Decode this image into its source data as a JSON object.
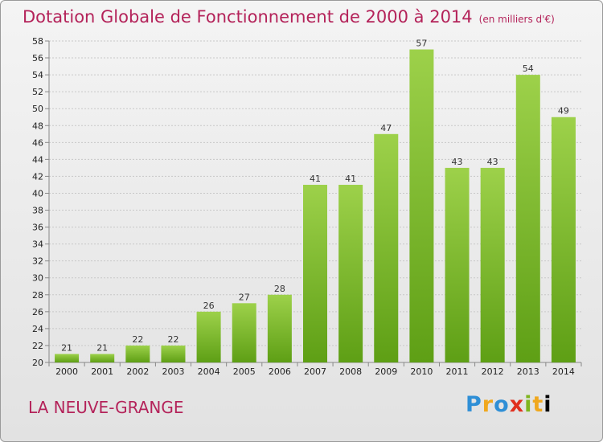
{
  "header": {
    "title": "Dotation Globale de Fonctionnement de 2000 à 2014",
    "unit": "(en milliers d'€)"
  },
  "footer": {
    "commune": "LA NEUVE-GRANGE",
    "logo": "Proxiti"
  },
  "colors": {
    "title": "#b4235a",
    "bar_light": "#9dd14a",
    "bar_dark": "#5e9f15",
    "grid": "#c8c8c8"
  },
  "chart_data": {
    "type": "bar",
    "title": "Dotation Globale de Fonctionnement de 2000 à 2014",
    "subtitle": "(en milliers d'€)",
    "xlabel": "",
    "ylabel": "",
    "categories": [
      "2000",
      "2001",
      "2002",
      "2003",
      "2004",
      "2005",
      "2006",
      "2007",
      "2008",
      "2009",
      "2010",
      "2011",
      "2012",
      "2013",
      "2014"
    ],
    "values": [
      21,
      21,
      22,
      22,
      26,
      27,
      28,
      41,
      41,
      47,
      57,
      43,
      43,
      54,
      49
    ],
    "ylim": [
      20,
      58
    ],
    "ytick_step": 2,
    "grid": true,
    "legend": "none"
  }
}
